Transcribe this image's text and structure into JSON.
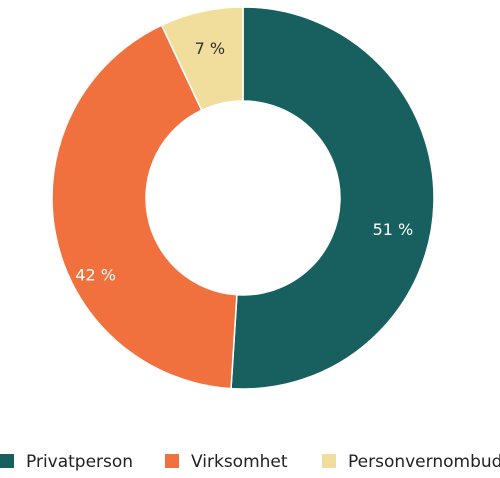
{
  "chart_data": {
    "type": "donut",
    "categories": [
      "Privatperson",
      "Virksomhet",
      "Personvernombud"
    ],
    "values": [
      51,
      42,
      7
    ],
    "value_labels": [
      "51 %",
      "42 %",
      "7 %"
    ],
    "colors": [
      "#17605f",
      "#f0713d",
      "#f1de9c"
    ]
  }
}
